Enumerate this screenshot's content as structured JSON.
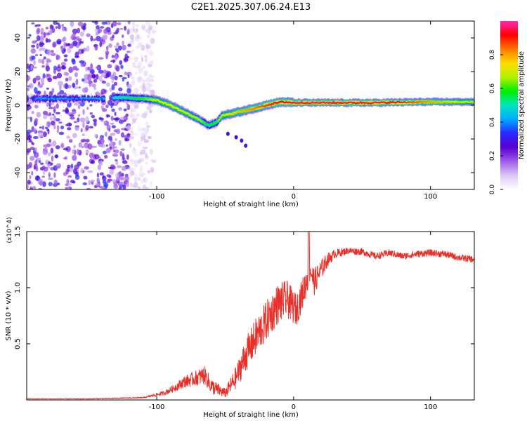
{
  "title": "C2E1.2025.307.06.24.E13",
  "colors": {
    "axes": "#000000",
    "snr_line": "#e8302a"
  },
  "chart_data": [
    {
      "type": "heatmap",
      "xlabel": "Height of straight line (km)",
      "ylabel": "Frequency (Hz)",
      "xlim": [
        -195,
        132
      ],
      "ylim": [
        -50,
        50
      ],
      "x_ticks": [
        -100,
        0,
        100
      ],
      "x_tick_labels": [
        "-100",
        "0",
        "100"
      ],
      "y_ticks": [
        -40,
        -20,
        0,
        20,
        40
      ],
      "y_tick_labels": [
        "-40",
        "-20",
        "0",
        "20",
        "40"
      ],
      "colorbar": {
        "label": "Normalized spectral amplitude",
        "range": [
          0,
          1
        ],
        "ticks": [
          0,
          0.2,
          0.4,
          0.6,
          0.8
        ],
        "tick_labels": [
          "0.0",
          "0.2",
          "0.4",
          "0.6",
          "0.8"
        ],
        "colormap": [
          "#ffffff",
          "#dcc8f5",
          "#a05ae6",
          "#5a00d2",
          "#2828ff",
          "#00aaff",
          "#00e6be",
          "#00f000",
          "#b4f000",
          "#ffdc00",
          "#ff7800",
          "#ff0000",
          "#ff28b4"
        ]
      },
      "ridge": {
        "x": [
          -195,
          -180,
          -160,
          -140,
          -130,
          -120,
          -110,
          -100,
          -90,
          -80,
          -70,
          -62,
          -56,
          -52,
          -45,
          -35,
          -25,
          -15,
          -8,
          0,
          20,
          40,
          60,
          80,
          100,
          132
        ],
        "y": [
          4,
          4,
          4,
          4,
          4.5,
          4.5,
          4,
          3,
          0,
          -4,
          -8,
          -12,
          -10,
          -6,
          -5,
          -3,
          -1,
          1,
          2,
          1.5,
          1.5,
          1.5,
          1.5,
          1.8,
          2,
          2
        ],
        "amplitude": [
          0.35,
          0.45,
          0.4,
          0.45,
          0.5,
          0.55,
          0.6,
          0.7,
          0.75,
          0.72,
          0.68,
          0.55,
          0.6,
          0.7,
          0.75,
          0.8,
          0.85,
          0.9,
          0.92,
          0.95,
          0.96,
          0.94,
          0.95,
          0.9,
          0.8,
          0.7
        ]
      },
      "noise_region_x": [
        -195,
        -110
      ]
    },
    {
      "type": "line",
      "xlabel": "Height of straight line (km)",
      "ylabel": "SNR (10 * v/v)",
      "y_multiplier": "(x10^4)",
      "xlim": [
        -195,
        132
      ],
      "ylim": [
        0,
        1.5
      ],
      "x_ticks": [
        -100,
        0,
        100
      ],
      "x_tick_labels": [
        "-100",
        "0",
        "100"
      ],
      "y_ticks": [
        0.5,
        1.0,
        1.5
      ],
      "y_tick_labels": [
        "0.5",
        "1.0",
        "1.5"
      ],
      "series": [
        {
          "name": "SNR",
          "x": [
            -195,
            -150,
            -110,
            -95,
            -88,
            -80,
            -75,
            -70,
            -65,
            -60,
            -50,
            -42,
            -35,
            -28,
            -20,
            -12,
            -5,
            2,
            8,
            12,
            15,
            20,
            25,
            30,
            40,
            50,
            60,
            70,
            80,
            90,
            100,
            110,
            120,
            132
          ],
          "values": [
            0.01,
            0.01,
            0.02,
            0.06,
            0.1,
            0.16,
            0.18,
            0.2,
            0.22,
            0.12,
            0.06,
            0.2,
            0.4,
            0.55,
            0.7,
            0.85,
            0.9,
            0.8,
            1.0,
            1.18,
            1.05,
            1.16,
            1.25,
            1.3,
            1.33,
            1.32,
            1.28,
            1.31,
            1.28,
            1.3,
            1.31,
            1.3,
            1.27,
            1.25
          ],
          "noise_amplitude": [
            0.003,
            0.003,
            0.005,
            0.02,
            0.03,
            0.05,
            0.06,
            0.07,
            0.08,
            0.07,
            0.04,
            0.1,
            0.15,
            0.17,
            0.18,
            0.18,
            0.17,
            0.14,
            0.14,
            0.15,
            0.12,
            0.09,
            0.06,
            0.04,
            0.03,
            0.03,
            0.03,
            0.03,
            0.03,
            0.03,
            0.03,
            0.03,
            0.03,
            0.03
          ]
        }
      ]
    }
  ]
}
